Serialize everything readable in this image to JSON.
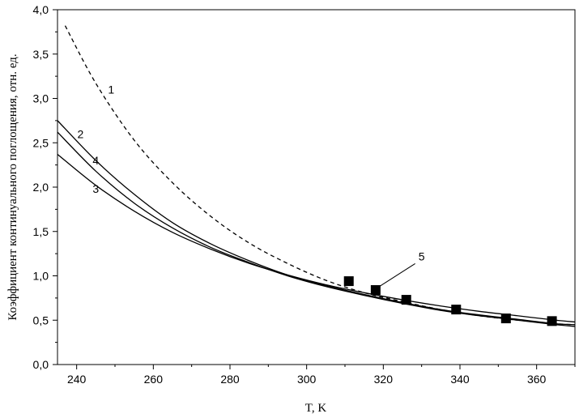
{
  "chart_data": {
    "type": "line",
    "xlabel": "T, K",
    "ylabel": "Коэффициент континуального поглощения, отн. ед.",
    "xlim": [
      235,
      370
    ],
    "ylim": [
      0.0,
      4.0
    ],
    "x_ticks": [
      240,
      260,
      280,
      300,
      320,
      340,
      360
    ],
    "y_ticks": [
      "0,0",
      "0,5",
      "1,0",
      "1,5",
      "2,0",
      "2,5",
      "3,0",
      "3,5",
      "4,0"
    ],
    "grid": false,
    "legend": "none",
    "series": [
      {
        "name": "1",
        "style": "dashed",
        "x": [
          237,
          245,
          255,
          265,
          275,
          285,
          295,
          305,
          315,
          325,
          335,
          345,
          355,
          365,
          370
        ],
        "y": [
          3.82,
          3.17,
          2.53,
          2.05,
          1.67,
          1.37,
          1.14,
          0.95,
          0.81,
          0.71,
          0.62,
          0.55,
          0.5,
          0.46,
          0.45
        ]
      },
      {
        "name": "2",
        "style": "solid",
        "x": [
          235,
          245,
          255,
          265,
          275,
          285,
          295,
          305,
          315,
          325,
          335,
          345,
          355,
          365,
          370
        ],
        "y": [
          2.75,
          2.3,
          1.92,
          1.6,
          1.36,
          1.17,
          1.01,
          0.89,
          0.79,
          0.7,
          0.62,
          0.56,
          0.51,
          0.46,
          0.45
        ]
      },
      {
        "name": "3",
        "style": "solid",
        "x": [
          235,
          245,
          255,
          265,
          275,
          285,
          295,
          305,
          315,
          325,
          335,
          345,
          355,
          365,
          370
        ],
        "y": [
          2.37,
          2.02,
          1.73,
          1.49,
          1.3,
          1.14,
          1.01,
          0.9,
          0.81,
          0.73,
          0.66,
          0.6,
          0.55,
          0.5,
          0.48
        ]
      },
      {
        "name": "4",
        "style": "solid",
        "x": [
          235,
          245,
          255,
          265,
          275,
          285,
          295,
          305,
          315,
          325,
          335,
          345,
          355,
          365,
          370
        ],
        "y": [
          2.62,
          2.18,
          1.82,
          1.54,
          1.32,
          1.15,
          1.0,
          0.88,
          0.78,
          0.69,
          0.61,
          0.55,
          0.5,
          0.45,
          0.43
        ]
      },
      {
        "name": "5",
        "style": "markers",
        "x": [
          311,
          318,
          326,
          339,
          352,
          364
        ],
        "y": [
          0.94,
          0.84,
          0.73,
          0.62,
          0.52,
          0.49
        ]
      }
    ],
    "curve_labels": [
      {
        "text": "1",
        "x": 249,
        "y": 3.1
      },
      {
        "text": "2",
        "x": 241,
        "y": 2.6
      },
      {
        "text": "4",
        "x": 245,
        "y": 2.3
      },
      {
        "text": "3",
        "x": 245,
        "y": 1.98
      },
      {
        "text": "5",
        "x": 330,
        "y": 1.22
      }
    ]
  },
  "colors": {
    "axis": "#000000",
    "curve": "#000000",
    "marker": "#000000"
  }
}
